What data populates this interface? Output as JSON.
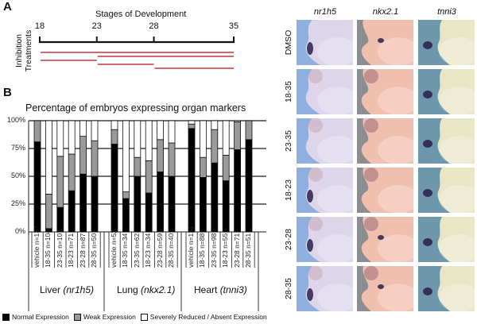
{
  "panel_a": {
    "letter": "A",
    "title": "Stages of Development",
    "side_label_line1": "Inhibition",
    "side_label_line2": "Treatments",
    "ticks": [
      "18",
      "23",
      "28",
      "35"
    ],
    "treatments": [
      {
        "start": 18,
        "end": 35
      },
      {
        "start": 23,
        "end": 35
      },
      {
        "start": 18,
        "end": 23
      },
      {
        "start": 23,
        "end": 28
      },
      {
        "start": 28,
        "end": 35
      }
    ],
    "treatment_color": "#c8323c"
  },
  "panel_b": {
    "letter": "B"
  },
  "chart_data": {
    "type": "bar",
    "stacked": true,
    "title": "Percentage of embryos expressing organ markers",
    "xlabel": "",
    "ylabel": "",
    "ylim": [
      0,
      100
    ],
    "yticks": [
      "0%",
      "25%",
      "50%",
      "75%",
      "100%"
    ],
    "grid": true,
    "legend_position": "bottom",
    "groups": [
      {
        "name": "Liver",
        "gene": "(nr1h5)",
        "categories": [
          "vehicle n=137",
          "18-35 n=104",
          "23-35 n=107",
          "18-23 n=71",
          "23-28 n=87",
          "28-35 n=50"
        ]
      },
      {
        "name": "Lung",
        "gene": "(nkx2.1)",
        "categories": [
          "vehicle n=52",
          "18-35 n=34",
          "23-35 n=62",
          "18-23 n=34",
          "23-28 n=59",
          "28-35 n=40"
        ]
      },
      {
        "name": "Heart",
        "gene": "(tnni3)",
        "categories": [
          "vehicle n=131",
          "18-35 n=88",
          "23-35 n=98",
          "18-23 n=55",
          "23-28 n=71",
          "28-35 n=51"
        ]
      }
    ],
    "series": [
      {
        "name": "Normal Expression",
        "color": "#000000",
        "values": [
          [
            81,
            3,
            22,
            37,
            52,
            50
          ],
          [
            79,
            30,
            50,
            35,
            54,
            50
          ],
          [
            93,
            49,
            62,
            46,
            74,
            83
          ]
        ]
      },
      {
        "name": "Weak Expression",
        "color": "#9a9a9a",
        "values": [
          [
            19,
            31,
            46,
            33,
            34,
            32
          ],
          [
            13,
            6,
            17,
            29,
            29,
            30
          ],
          [
            4,
            18,
            30,
            23,
            25,
            17
          ]
        ]
      },
      {
        "name": "Severely Reduced / Absent Expression",
        "color": "#ffffff",
        "values": [
          [
            0,
            66,
            32,
            30,
            14,
            18
          ],
          [
            8,
            64,
            33,
            36,
            17,
            20
          ],
          [
            3,
            33,
            8,
            31,
            1,
            0
          ]
        ]
      }
    ]
  },
  "legend": [
    {
      "label": "Normal Expression",
      "color": "#000000"
    },
    {
      "label": "Weak Expression",
      "color": "#9a9a9a"
    },
    {
      "label": "Severely Reduced / Absent Expression",
      "color": "#ffffff"
    }
  ],
  "image_grid": {
    "columns": [
      "nr1h5",
      "nkx2.1",
      "tnni3"
    ],
    "rows": [
      "DMSO",
      "18-35",
      "23-35",
      "18-23",
      "23-28",
      "28-35"
    ],
    "column_backgrounds": [
      "#8fb0de",
      "#8a8e90",
      "#6d98ab"
    ],
    "column_tissue_colors": [
      "#ddd6ea",
      "#f0bfae",
      "#e9e6c6"
    ],
    "stain_color": "#2a1f4a",
    "stain_visible": [
      [
        true,
        true,
        true
      ],
      [
        false,
        false,
        true
      ],
      [
        false,
        false,
        true
      ],
      [
        true,
        false,
        true
      ],
      [
        true,
        true,
        true
      ],
      [
        true,
        true,
        true
      ]
    ]
  }
}
